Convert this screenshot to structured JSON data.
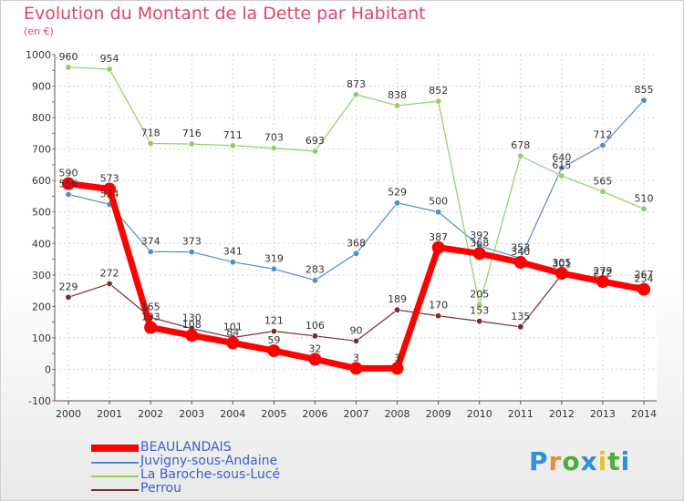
{
  "header": {
    "title": "Evolution du Montant de la Dette par Habitant",
    "subtitle": "(en €)"
  },
  "logo": {
    "letters": [
      "P",
      "r",
      "o",
      "x",
      "i",
      "t",
      "i"
    ],
    "colors": [
      "#2f8fd8",
      "#e8902a",
      "#4cae3c",
      "#2f8fd8",
      "#e8c52a",
      "#4cae3c",
      "#2f8fd8"
    ]
  },
  "chart_data": {
    "type": "line",
    "title": "Evolution du Montant de la Dette par Habitant",
    "subtitle": "(en €)",
    "xlabel": "",
    "ylabel": "",
    "x": [
      "2000",
      "2001",
      "2002",
      "2003",
      "2004",
      "2005",
      "2006",
      "2007",
      "2008",
      "2009",
      "2010",
      "2011",
      "2012",
      "2013",
      "2014"
    ],
    "ylim": [
      -100,
      1000
    ],
    "yticks": [
      -100,
      0,
      100,
      200,
      300,
      400,
      500,
      600,
      700,
      800,
      900,
      1000
    ],
    "grid": true,
    "legend_position": "bottom-left",
    "series": [
      {
        "name": "BEAULANDAIS",
        "color": "#ff0000",
        "values": [
          590,
          573,
          133,
          108,
          84,
          59,
          32,
          3,
          3,
          387,
          368,
          340,
          305,
          279,
          254
        ],
        "labels": [
          "590",
          "573",
          "133",
          "108",
          "84",
          "59",
          "32",
          "3",
          "3",
          "387",
          "368",
          "340",
          "305",
          "279",
          "254"
        ]
      },
      {
        "name": "Juvigny-sous-Andaine",
        "color": "#4a90d0",
        "values": [
          556,
          524,
          374,
          373,
          341,
          319,
          283,
          368,
          529,
          500,
          392,
          353,
          640,
          712,
          855
        ],
        "labels": [
          "556",
          "524",
          "374",
          "373",
          "341",
          "319",
          "283",
          "368",
          "529",
          "500",
          "392",
          "353",
          "640",
          "712",
          "855"
        ]
      },
      {
        "name": "La Baroche-sous-Lucé",
        "color": "#8ed060",
        "values": [
          960,
          954,
          718,
          716,
          711,
          703,
          693,
          873,
          838,
          852,
          205,
          678,
          615,
          565,
          510
        ],
        "labels": [
          "960",
          "954",
          "718",
          "716",
          "711",
          "703",
          "693",
          "873",
          "838",
          "852",
          "205",
          "678",
          "615",
          "565",
          "510"
        ]
      },
      {
        "name": "Perrou",
        "color": "#7a2a30",
        "values": [
          229,
          272,
          165,
          130,
          101,
          121,
          106,
          90,
          189,
          170,
          153,
          135,
          301,
          272,
          267
        ],
        "labels": [
          "229",
          "272",
          "165",
          "130",
          "101",
          "121",
          "106",
          "90",
          "189",
          "170",
          "153",
          "135",
          "301",
          "272",
          "267"
        ]
      }
    ]
  }
}
